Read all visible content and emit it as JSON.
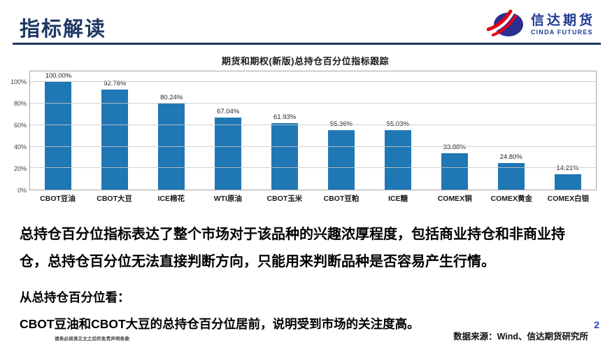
{
  "header": {
    "title": "指标解读"
  },
  "logo": {
    "name_cn": "信达期货",
    "name_en": "CINDA FUTURES"
  },
  "chart_data": {
    "type": "bar",
    "title": "期货和期权(新版)总持仓百分位指标跟踪",
    "categories": [
      "CBOT豆油",
      "CBOT大豆",
      "ICE棉花",
      "WTI原油",
      "CBOT玉米",
      "CBOT豆粕",
      "ICE糖",
      "COMEX铜",
      "COMEX黄金",
      "COMEX白银"
    ],
    "values": [
      100.0,
      92.78,
      80.24,
      67.04,
      61.93,
      55.36,
      55.03,
      33.88,
      24.8,
      14.21
    ],
    "value_labels": [
      "100.00%",
      "92.78%",
      "80.24%",
      "67.04%",
      "61.93%",
      "55.36%",
      "55.03%",
      "33.88%",
      "24.80%",
      "14.21%"
    ],
    "y_tick_values": [
      0,
      20,
      40,
      60,
      80,
      100
    ],
    "y_tick_labels": [
      "0%",
      "20%",
      "40%",
      "60%",
      "80%",
      "100%"
    ],
    "ylim": [
      0,
      110
    ],
    "xlabel": "",
    "ylabel": "",
    "grid": true,
    "legend": false,
    "bar_color": "#1F77B4"
  },
  "body": {
    "paragraph1": "总持仓百分位指标表达了整个市场对于该品种的兴趣浓厚程度，包括商业持仓和非商业持仓，总持仓百分位无法直接判断方向，只能用来判断品种是否容易产生行情。",
    "paragraph2": "从总持仓百分位看：",
    "paragraph3": "CBOT豆油和CBOT大豆的总持仓百分位居前，说明受到市场的关注度高。"
  },
  "footer": {
    "disclaimer": "请务必阅读正文之后的免责声明条款",
    "source": "数据来源：Wind、信达期货研究所",
    "page_number": "2"
  },
  "colors": {
    "accent_navy": "#1F3864",
    "bar_blue": "#1F77B4",
    "logo_blue": "#2A2F8F",
    "logo_red": "#E60012",
    "page_number_blue": "#2540C8"
  }
}
